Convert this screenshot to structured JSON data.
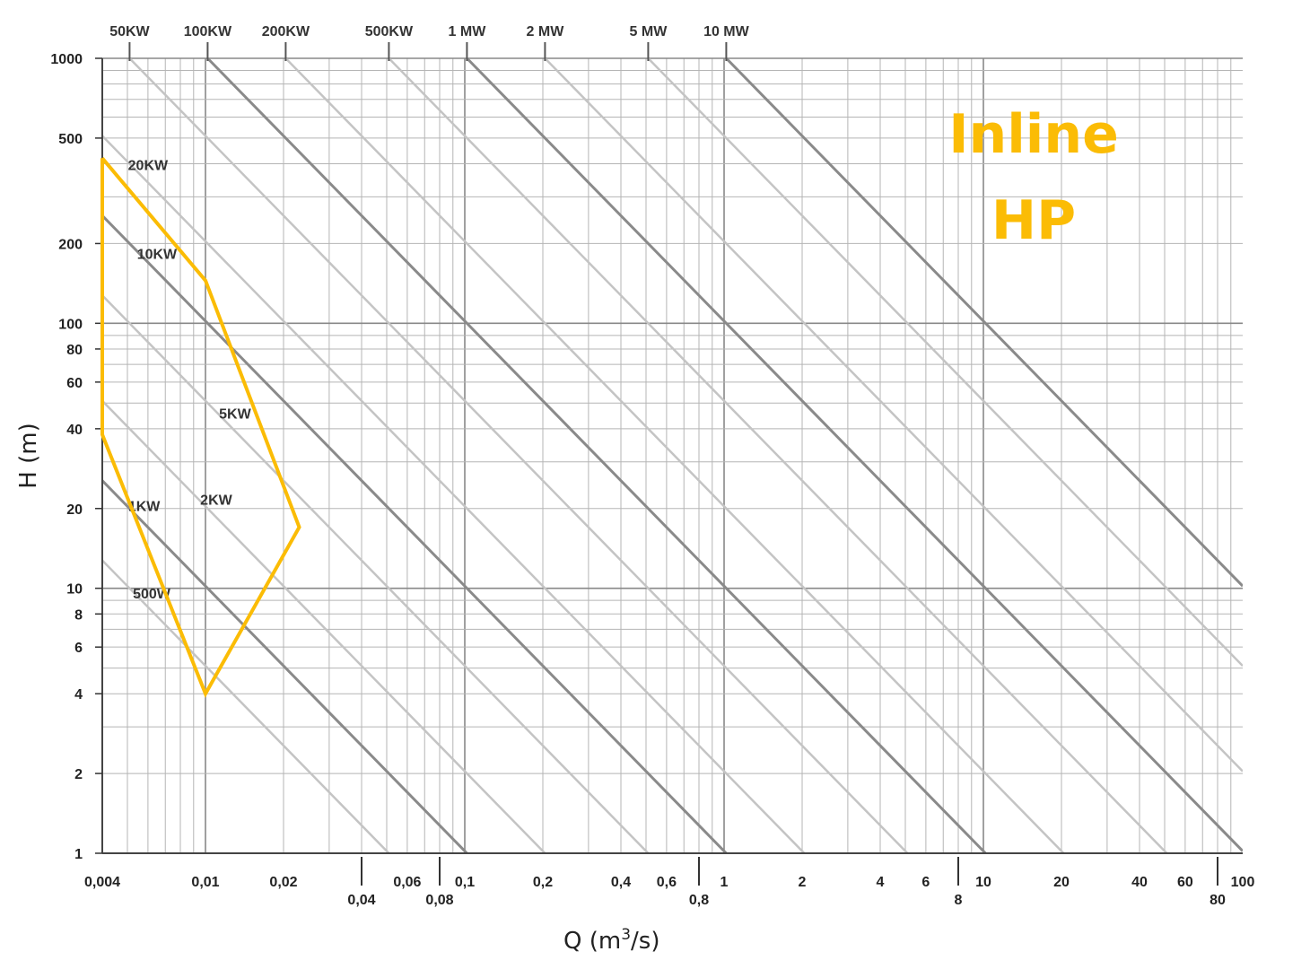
{
  "chart_data": {
    "type": "line",
    "title": "",
    "xlabel": "Q (m",
    "xlabel_sup": "3",
    "xlabel_end": "/s)",
    "ylabel": "H (m)",
    "x_scale": "log",
    "y_scale": "log",
    "xlim": [
      0.004,
      100
    ],
    "ylim": [
      1,
      1000
    ],
    "grid": true,
    "x_ticks_row1": [
      "0,004",
      "0,01",
      "0,02",
      "0,06",
      "0,1",
      "0,2",
      "0,4",
      "0,6",
      "1",
      "2",
      "4",
      "6",
      "10",
      "20",
      "40",
      "60",
      "100"
    ],
    "x_ticks_row2": [
      "0,04",
      "0,08",
      "0,8",
      "8",
      "80"
    ],
    "y_ticks": [
      "1000",
      "500",
      "200",
      "100",
      "80",
      "60",
      "40",
      "20",
      "10",
      "8",
      "6",
      "4",
      "2",
      "1"
    ],
    "power_lines": [
      {
        "label": "500W",
        "kw": 0.5
      },
      {
        "label": "1KW",
        "kw": 1
      },
      {
        "label": "2KW",
        "kw": 2
      },
      {
        "label": "5KW",
        "kw": 5
      },
      {
        "label": "10KW",
        "kw": 10
      },
      {
        "label": "20KW",
        "kw": 20
      },
      {
        "label": "50KW",
        "kw": 50
      },
      {
        "label": "100KW",
        "kw": 100
      },
      {
        "label": "200KW",
        "kw": 200
      },
      {
        "label": "500KW",
        "kw": 500
      },
      {
        "label": "1 MW",
        "kw": 1000
      },
      {
        "label": "2 MW",
        "kw": 2000
      },
      {
        "label": "5 MW",
        "kw": 5000
      },
      {
        "label": "10 MW",
        "kw": 10000
      }
    ],
    "series": [
      {
        "name": "Inline HP",
        "color": "#fbbc05",
        "points": [
          [
            0.004,
            420
          ],
          [
            0.01,
            145
          ],
          [
            0.023,
            17
          ],
          [
            0.01,
            4
          ],
          [
            0.004,
            38
          ],
          [
            0.004,
            420
          ]
        ]
      }
    ],
    "annotation_line1": "Inline",
    "annotation_line2": "HP",
    "annotation_color": "#fbbc05"
  }
}
